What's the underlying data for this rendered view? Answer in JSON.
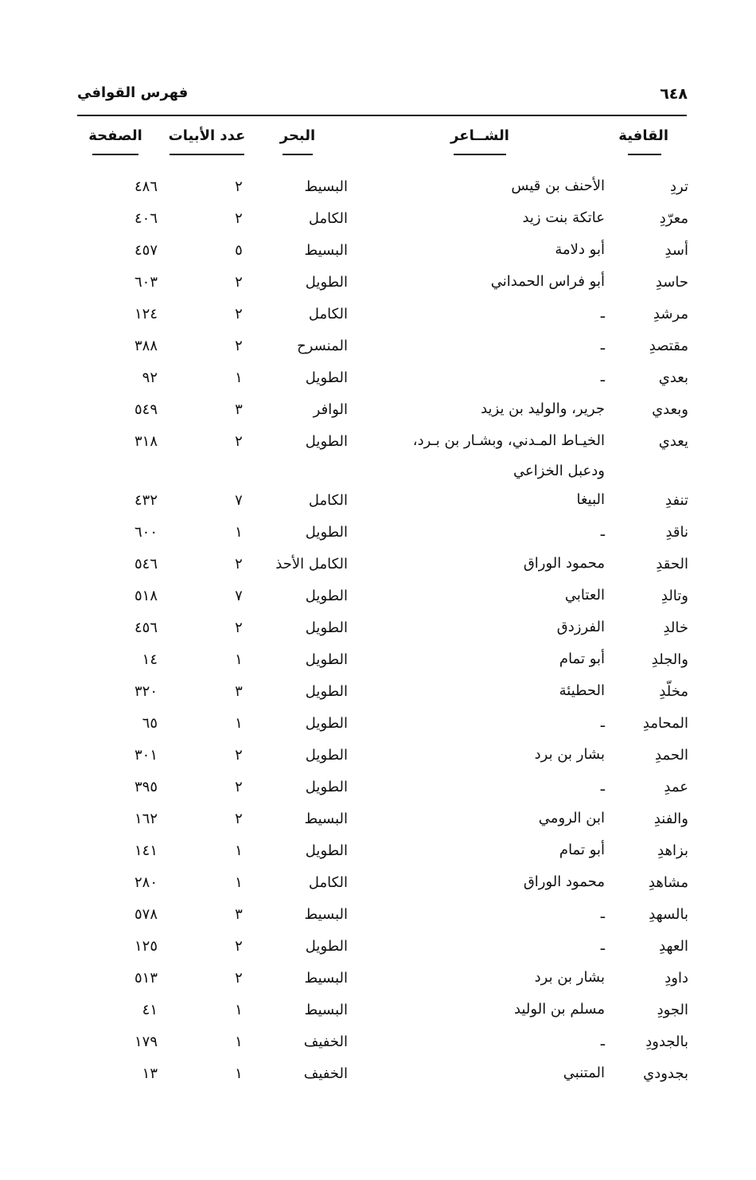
{
  "header": {
    "page_number": "٦٤٨",
    "running_title": "فهرس القوافي"
  },
  "columns": {
    "rhyme": "القافية",
    "poet": "الشــاعر",
    "meter": "البحر",
    "verses": "عدد الأبيات",
    "page": "الصفحة"
  },
  "rows": [
    {
      "rhyme": "تردِ",
      "poet": [
        "الأحنف بن قيس"
      ],
      "meter": "البسيط",
      "verses": "٢",
      "page": "٤٨٦"
    },
    {
      "rhyme": "معرّدِ",
      "poet": [
        "عاتكة بنت زيد"
      ],
      "meter": "الكامل",
      "verses": "٢",
      "page": "٤٠٦"
    },
    {
      "rhyme": "أسدِ",
      "poet": [
        "أبو دلامة"
      ],
      "meter": "البسيط",
      "verses": "٥",
      "page": "٤٥٧"
    },
    {
      "rhyme": "حاسدِ",
      "poet": [
        "أبو فراس الحمداني"
      ],
      "meter": "الطويل",
      "verses": "٢",
      "page": "٦٠٣"
    },
    {
      "rhyme": "مرشدِ",
      "poet": [
        "ـ"
      ],
      "meter": "الكامل",
      "verses": "٢",
      "page": "١٢٤"
    },
    {
      "rhyme": "مقتصدِ",
      "poet": [
        "ـ"
      ],
      "meter": "المنسرح",
      "verses": "٢",
      "page": "٣٨٨"
    },
    {
      "rhyme": "بعدي",
      "poet": [
        "ـ"
      ],
      "meter": "الطويل",
      "verses": "١",
      "page": "٩٢"
    },
    {
      "rhyme": "وبعدي",
      "poet": [
        "جرير، والوليد بن يزيد"
      ],
      "meter": "الوافر",
      "verses": "٣",
      "page": "٥٤٩"
    },
    {
      "rhyme": "يعدي",
      "poet": [
        "الخيـاط المـدني، وبشـار بن بـرد،",
        "ودعبل الخزاعي"
      ],
      "meter": "الطويل",
      "verses": "٢",
      "page": "٣١٨"
    },
    {
      "rhyme": "تنفدِ",
      "poet": [
        "البيغا"
      ],
      "meter": "الكامل",
      "verses": "٧",
      "page": "٤٣٢"
    },
    {
      "rhyme": "ناقدِ",
      "poet": [
        "ـ"
      ],
      "meter": "الطويل",
      "verses": "١",
      "page": "٦٠٠"
    },
    {
      "rhyme": "الحقدِ",
      "poet": [
        "محمود الوراق"
      ],
      "meter": "الكامل الأحذ",
      "verses": "٢",
      "page": "٥٤٦"
    },
    {
      "rhyme": "وتالدِ",
      "poet": [
        "العتابي"
      ],
      "meter": "الطويل",
      "verses": "٧",
      "page": "٥١٨"
    },
    {
      "rhyme": "خالدِ",
      "poet": [
        "الفرزدق"
      ],
      "meter": "الطويل",
      "verses": "٢",
      "page": "٤٥٦"
    },
    {
      "rhyme": "والجلدِ",
      "poet": [
        "أبو تمام"
      ],
      "meter": "الطويل",
      "verses": "١",
      "page": "١٤"
    },
    {
      "rhyme": "مخلّدِ",
      "poet": [
        "الحطيئة"
      ],
      "meter": "الطويل",
      "verses": "٣",
      "page": "٣٢٠"
    },
    {
      "rhyme": "المحامدِ",
      "poet": [
        "ـ"
      ],
      "meter": "الطويل",
      "verses": "١",
      "page": "٦٥"
    },
    {
      "rhyme": "الحمدِ",
      "poet": [
        "بشار بن برد"
      ],
      "meter": "الطويل",
      "verses": "٢",
      "page": "٣٠١"
    },
    {
      "rhyme": "عمدِ",
      "poet": [
        "ـ"
      ],
      "meter": "الطويل",
      "verses": "٢",
      "page": "٣٩٥"
    },
    {
      "rhyme": "والفندِ",
      "poet": [
        "ابن الرومي"
      ],
      "meter": "البسيط",
      "verses": "٢",
      "page": "١٦٢"
    },
    {
      "rhyme": "بزاهدِ",
      "poet": [
        "أبو تمام"
      ],
      "meter": "الطويل",
      "verses": "١",
      "page": "١٤١"
    },
    {
      "rhyme": "مشاهدِ",
      "poet": [
        "محمود الوراق"
      ],
      "meter": "الكامل",
      "verses": "١",
      "page": "٢٨٠"
    },
    {
      "rhyme": "بالسهدِ",
      "poet": [
        "ـ"
      ],
      "meter": "البسيط",
      "verses": "٣",
      "page": "٥٧٨"
    },
    {
      "rhyme": "العهدِ",
      "poet": [
        "ـ"
      ],
      "meter": "الطويل",
      "verses": "٢",
      "page": "١٢٥"
    },
    {
      "rhyme": "داودِ",
      "poet": [
        "بشار بن برد"
      ],
      "meter": "البسيط",
      "verses": "٢",
      "page": "٥١٣"
    },
    {
      "rhyme": "الجودِ",
      "poet": [
        "مسلم بن الوليد"
      ],
      "meter": "البسيط",
      "verses": "١",
      "page": "٤١"
    },
    {
      "rhyme": "بالجدودِ",
      "poet": [
        "ـ"
      ],
      "meter": "الخفيف",
      "verses": "١",
      "page": "١٧٩"
    },
    {
      "rhyme": "بجدودي",
      "poet": [
        "المتنبي"
      ],
      "meter": "الخفيف",
      "verses": "١",
      "page": "١٣"
    }
  ]
}
